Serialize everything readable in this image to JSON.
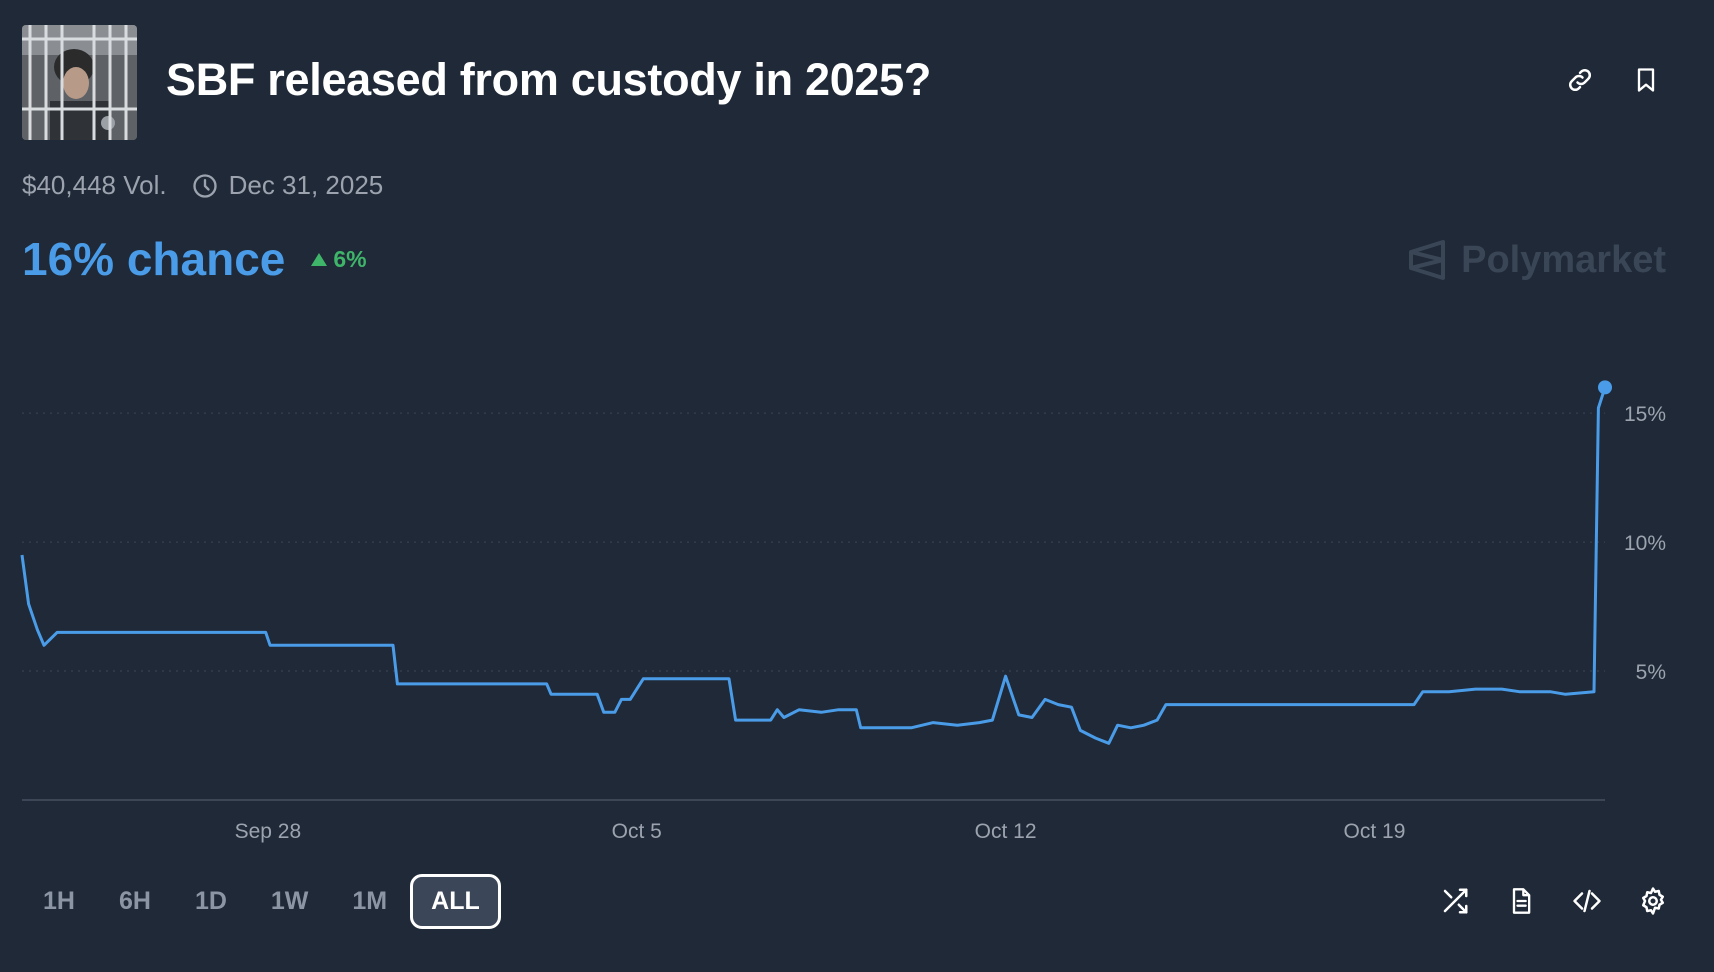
{
  "market": {
    "title": "SBF released from custody in 2025?",
    "volume": "$40,448 Vol.",
    "end_date": "Dec 31, 2025",
    "chance": "16% chance",
    "change": "6%",
    "brand": "Polymarket"
  },
  "time_ranges": [
    "1H",
    "6H",
    "1D",
    "1W",
    "1M",
    "ALL"
  ],
  "active_range": "ALL",
  "icons": {
    "header": [
      "link-icon",
      "bookmark-icon"
    ],
    "footer": [
      "shuffle-icon",
      "document-icon",
      "code-icon",
      "gear-icon"
    ]
  },
  "colors": {
    "line": "#4a9ce8",
    "positive": "#3fb56a",
    "background": "#1f2937"
  },
  "chart_data": {
    "type": "line",
    "series": [
      {
        "values": [
          [
            "2025-09-23T08:00",
            9.5
          ],
          [
            "2025-09-23T11:00",
            7.6
          ],
          [
            "2025-09-23T15:00",
            6.6
          ],
          [
            "2025-09-23T18:00",
            6.0
          ],
          [
            "2025-09-24T00:00",
            6.5
          ],
          [
            "2025-09-27T23:00",
            6.5
          ],
          [
            "2025-09-28T01:00",
            6.0
          ],
          [
            "2025-09-30T09:00",
            6.0
          ],
          [
            "2025-09-30T11:00",
            4.5
          ],
          [
            "2025-10-03T07:00",
            4.5
          ],
          [
            "2025-10-03T09:00",
            4.1
          ],
          [
            "2025-10-04T06:00",
            4.1
          ],
          [
            "2025-10-04T09:00",
            3.4
          ],
          [
            "2025-10-04T14:00",
            3.4
          ],
          [
            "2025-10-04T17:00",
            3.9
          ],
          [
            "2025-10-04T21:00",
            3.9
          ],
          [
            "2025-10-05T03:00",
            4.7
          ],
          [
            "2025-10-06T18:00",
            4.7
          ],
          [
            "2025-10-06T21:00",
            3.1
          ],
          [
            "2025-10-07T13:00",
            3.1
          ],
          [
            "2025-10-07T16:00",
            3.5
          ],
          [
            "2025-10-07T19:00",
            3.2
          ],
          [
            "2025-10-08T02:00",
            3.5
          ],
          [
            "2025-10-08T12:00",
            3.4
          ],
          [
            "2025-10-08T20:00",
            3.5
          ],
          [
            "2025-10-09T04:00",
            3.5
          ],
          [
            "2025-10-09T06:00",
            2.8
          ],
          [
            "2025-10-09T18:00",
            2.8
          ],
          [
            "2025-10-10T05:00",
            2.8
          ],
          [
            "2025-10-10T15:00",
            3.0
          ],
          [
            "2025-10-11T02:00",
            2.9
          ],
          [
            "2025-10-11T12:00",
            3.0
          ],
          [
            "2025-10-11T18:00",
            3.1
          ],
          [
            "2025-10-12T00:00",
            4.8
          ],
          [
            "2025-10-12T06:00",
            3.3
          ],
          [
            "2025-10-12T12:00",
            3.2
          ],
          [
            "2025-10-12T18:00",
            3.9
          ],
          [
            "2025-10-13T00:00",
            3.7
          ],
          [
            "2025-10-13T06:00",
            3.6
          ],
          [
            "2025-10-13T10:00",
            2.7
          ],
          [
            "2025-10-13T17:00",
            2.4
          ],
          [
            "2025-10-13T23:00",
            2.2
          ],
          [
            "2025-10-14T03:00",
            2.9
          ],
          [
            "2025-10-14T09:00",
            2.8
          ],
          [
            "2025-10-14T15:00",
            2.9
          ],
          [
            "2025-10-14T21:00",
            3.1
          ],
          [
            "2025-10-15T01:00",
            3.7
          ],
          [
            "2025-10-19T18:00",
            3.7
          ],
          [
            "2025-10-19T22:00",
            4.2
          ],
          [
            "2025-10-20T10:00",
            4.2
          ],
          [
            "2025-10-20T22:00",
            4.3
          ],
          [
            "2025-10-21T10:00",
            4.3
          ],
          [
            "2025-10-21T18:00",
            4.2
          ],
          [
            "2025-10-22T08:00",
            4.2
          ],
          [
            "2025-10-22T15:00",
            4.1
          ],
          [
            "2025-10-23T04:00",
            4.2
          ],
          [
            "2025-10-23T06:00",
            15.2
          ],
          [
            "2025-10-23T09:00",
            16.0
          ]
        ]
      }
    ],
    "x_ticks": [
      "Sep 28",
      "Oct 5",
      "Oct 12",
      "Oct 19"
    ],
    "x_tick_values": [
      "2025-09-28",
      "2025-10-05",
      "2025-10-12",
      "2025-10-19"
    ],
    "y_ticks": [
      "5%",
      "10%",
      "15%"
    ],
    "y_tick_values": [
      5,
      10,
      15
    ],
    "ylim": [
      0,
      19
    ],
    "xlim": [
      "2025-09-23T08:00",
      "2025-10-23T09:00"
    ],
    "grid": true
  }
}
